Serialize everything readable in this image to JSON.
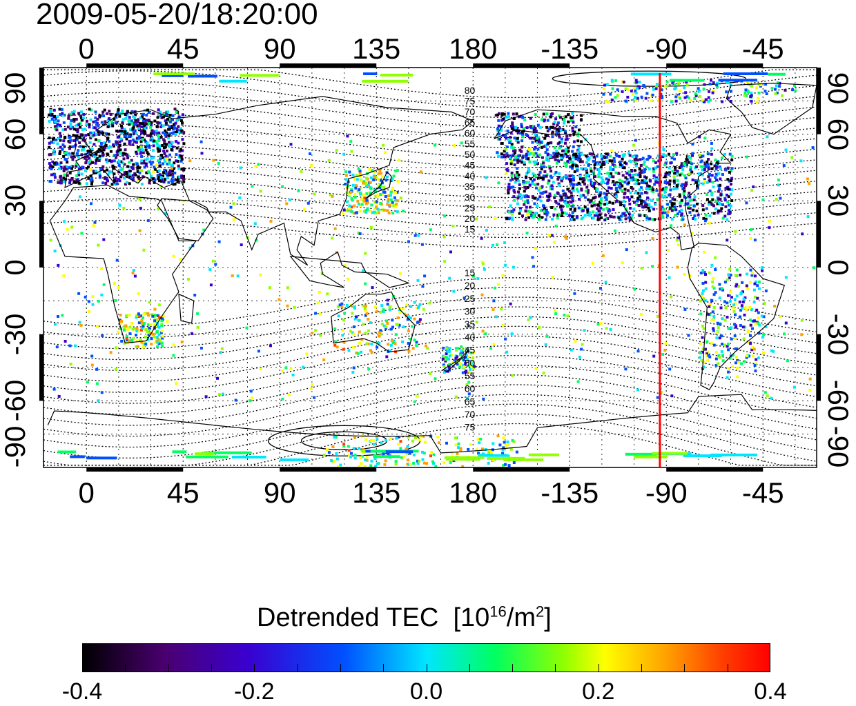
{
  "timestamp": "2009-05-20/18:20:00",
  "map": {
    "lon_min": -20,
    "lon_max": 340,
    "lat_min": -90,
    "lat_max": 90,
    "lon_ticks": [
      {
        "lon": 0,
        "label": "0"
      },
      {
        "lon": 45,
        "label": "45"
      },
      {
        "lon": 90,
        "label": "90"
      },
      {
        "lon": 135,
        "label": "135"
      },
      {
        "lon": 180,
        "label": "180"
      },
      {
        "lon": 225,
        "label": "-135"
      },
      {
        "lon": 270,
        "label": "-90"
      },
      {
        "lon": 315,
        "label": "-45"
      }
    ],
    "lat_ticks": [
      {
        "lat": 90,
        "label": "90"
      },
      {
        "lat": 60,
        "label": "60"
      },
      {
        "lat": 30,
        "label": "30"
      },
      {
        "lat": 0,
        "label": "0"
      },
      {
        "lat": -30,
        "label": "-30"
      },
      {
        "lat": -60,
        "label": "-60"
      },
      {
        "lat": -90,
        "label": "-90"
      }
    ],
    "marker_longitude": 267,
    "marker_color": "#ff0000",
    "contour_labels_north": [
      "80",
      "75",
      "70",
      "65",
      "60",
      "55",
      "50",
      "45",
      "40",
      "35",
      "30",
      "25",
      "20",
      "15"
    ],
    "contour_labels_south": [
      "15",
      "20",
      "25",
      "30",
      "35",
      "40",
      "45",
      "50",
      "55",
      "60",
      "65",
      "70",
      "75"
    ]
  },
  "colorbar": {
    "title": "Detrended TEC",
    "unit_prefix": "[10",
    "unit_exp": "16",
    "unit_mid": "/m",
    "unit_exp2": "2",
    "unit_suffix": "]",
    "min": -0.4,
    "max": 0.4,
    "tick_labels": [
      "-0.4",
      "-0.2",
      "0.0",
      "0.2",
      "0.4"
    ],
    "colors": [
      "#000000",
      "#4a0070",
      "#3a00d0",
      "#0050ff",
      "#00e6ff",
      "#00ff60",
      "#90ff00",
      "#ffff00",
      "#ffa000",
      "#ff4000",
      "#ff0000"
    ]
  }
}
